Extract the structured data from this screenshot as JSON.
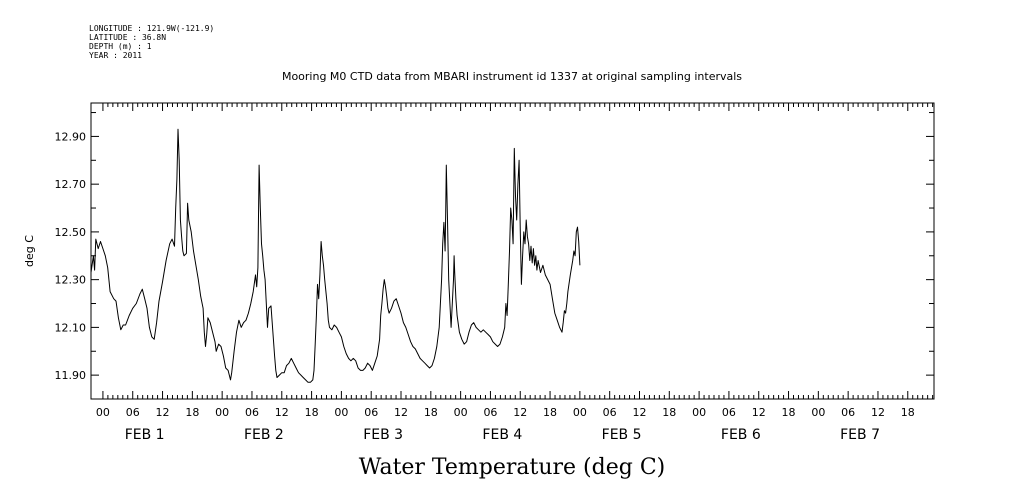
{
  "meta": {
    "longitude": "LONGITUDE : 121.9W(-121.9)",
    "latitude": "LATITUDE : 36.8N",
    "depth": "DEPTH (m) : 1",
    "year": "YEAR : 2011"
  },
  "chart_data": {
    "type": "line",
    "title": "Mooring M0 CTD data from MBARI instrument id 1337 at original sampling intervals",
    "xlabel": "Water Temperature (deg C)",
    "ylabel": "deg C",
    "xlim": [
      -0.1,
      6.97
    ],
    "ylim": [
      11.8,
      13.04
    ],
    "grid": false,
    "yticks": [
      "11.90",
      "12.10",
      "12.30",
      "12.50",
      "12.70",
      "12.90"
    ],
    "hour_labels": [
      "00",
      "06",
      "12",
      "18"
    ],
    "days": [
      {
        "label": "FEB  1"
      },
      {
        "label": "FEB  2"
      },
      {
        "label": "FEB  3"
      },
      {
        "label": "FEB  4"
      },
      {
        "label": "FEB  5"
      },
      {
        "label": "FEB  6"
      },
      {
        "label": "FEB  7"
      }
    ],
    "series": [
      {
        "color": "#000000",
        "points": [
          [
            -0.1,
            12.33
          ],
          [
            -0.08,
            12.4
          ],
          [
            -0.07,
            12.34
          ],
          [
            -0.06,
            12.47
          ],
          [
            -0.04,
            12.43
          ],
          [
            -0.02,
            12.46
          ],
          [
            0.0,
            12.43
          ],
          [
            0.02,
            12.4
          ],
          [
            0.04,
            12.35
          ],
          [
            0.06,
            12.25
          ],
          [
            0.09,
            12.22
          ],
          [
            0.11,
            12.21
          ],
          [
            0.13,
            12.14
          ],
          [
            0.15,
            12.09
          ],
          [
            0.17,
            12.11
          ],
          [
            0.19,
            12.11
          ],
          [
            0.22,
            12.15
          ],
          [
            0.25,
            12.18
          ],
          [
            0.28,
            12.2
          ],
          [
            0.31,
            12.24
          ],
          [
            0.33,
            12.26
          ],
          [
            0.35,
            12.22
          ],
          [
            0.37,
            12.18
          ],
          [
            0.39,
            12.1
          ],
          [
            0.41,
            12.06
          ],
          [
            0.43,
            12.05
          ],
          [
            0.45,
            12.12
          ],
          [
            0.47,
            12.21
          ],
          [
            0.5,
            12.29
          ],
          [
            0.53,
            12.38
          ],
          [
            0.56,
            12.45
          ],
          [
            0.58,
            12.47
          ],
          [
            0.6,
            12.44
          ],
          [
            0.61,
            12.6
          ],
          [
            0.62,
            12.72
          ],
          [
            0.63,
            12.93
          ],
          [
            0.64,
            12.8
          ],
          [
            0.65,
            12.55
          ],
          [
            0.66,
            12.48
          ],
          [
            0.67,
            12.42
          ],
          [
            0.68,
            12.4
          ],
          [
            0.7,
            12.41
          ],
          [
            0.71,
            12.62
          ],
          [
            0.72,
            12.55
          ],
          [
            0.74,
            12.5
          ],
          [
            0.76,
            12.42
          ],
          [
            0.78,
            12.36
          ],
          [
            0.8,
            12.3
          ],
          [
            0.82,
            12.23
          ],
          [
            0.84,
            12.18
          ],
          [
            0.85,
            12.08
          ],
          [
            0.86,
            12.02
          ],
          [
            0.87,
            12.07
          ],
          [
            0.88,
            12.14
          ],
          [
            0.9,
            12.12
          ],
          [
            0.92,
            12.08
          ],
          [
            0.94,
            12.04
          ],
          [
            0.95,
            12.0
          ],
          [
            0.97,
            12.03
          ],
          [
            0.99,
            12.02
          ],
          [
            1.01,
            11.98
          ],
          [
            1.03,
            11.93
          ],
          [
            1.05,
            11.92
          ],
          [
            1.07,
            11.88
          ],
          [
            1.08,
            11.91
          ],
          [
            1.1,
            12.0
          ],
          [
            1.12,
            12.08
          ],
          [
            1.14,
            12.13
          ],
          [
            1.16,
            12.1
          ],
          [
            1.18,
            12.12
          ],
          [
            1.2,
            12.13
          ],
          [
            1.22,
            12.16
          ],
          [
            1.24,
            12.2
          ],
          [
            1.26,
            12.25
          ],
          [
            1.28,
            12.32
          ],
          [
            1.29,
            12.27
          ],
          [
            1.3,
            12.35
          ],
          [
            1.31,
            12.78
          ],
          [
            1.32,
            12.6
          ],
          [
            1.33,
            12.45
          ],
          [
            1.34,
            12.4
          ],
          [
            1.35,
            12.34
          ],
          [
            1.36,
            12.3
          ],
          [
            1.37,
            12.2
          ],
          [
            1.38,
            12.1
          ],
          [
            1.39,
            12.18
          ],
          [
            1.41,
            12.19
          ],
          [
            1.42,
            12.12
          ],
          [
            1.43,
            12.05
          ],
          [
            1.44,
            11.98
          ],
          [
            1.45,
            11.92
          ],
          [
            1.46,
            11.89
          ],
          [
            1.48,
            11.9
          ],
          [
            1.5,
            11.91
          ],
          [
            1.52,
            11.91
          ],
          [
            1.54,
            11.94
          ],
          [
            1.56,
            11.95
          ],
          [
            1.58,
            11.97
          ],
          [
            1.6,
            11.95
          ],
          [
            1.62,
            11.93
          ],
          [
            1.64,
            11.91
          ],
          [
            1.66,
            11.9
          ],
          [
            1.68,
            11.89
          ],
          [
            1.7,
            11.88
          ],
          [
            1.72,
            11.87
          ],
          [
            1.74,
            11.87
          ],
          [
            1.76,
            11.88
          ],
          [
            1.77,
            11.92
          ],
          [
            1.78,
            12.03
          ],
          [
            1.79,
            12.15
          ],
          [
            1.8,
            12.28
          ],
          [
            1.81,
            12.22
          ],
          [
            1.82,
            12.32
          ],
          [
            1.83,
            12.46
          ],
          [
            1.84,
            12.4
          ],
          [
            1.85,
            12.36
          ],
          [
            1.86,
            12.3
          ],
          [
            1.87,
            12.25
          ],
          [
            1.88,
            12.2
          ],
          [
            1.89,
            12.13
          ],
          [
            1.9,
            12.1
          ],
          [
            1.92,
            12.09
          ],
          [
            1.94,
            12.11
          ],
          [
            1.96,
            12.1
          ],
          [
            1.98,
            12.08
          ],
          [
            2.0,
            12.06
          ],
          [
            2.02,
            12.02
          ],
          [
            2.04,
            11.99
          ],
          [
            2.06,
            11.97
          ],
          [
            2.08,
            11.96
          ],
          [
            2.1,
            11.97
          ],
          [
            2.12,
            11.96
          ],
          [
            2.14,
            11.93
          ],
          [
            2.16,
            11.92
          ],
          [
            2.18,
            11.92
          ],
          [
            2.2,
            11.93
          ],
          [
            2.22,
            11.95
          ],
          [
            2.24,
            11.94
          ],
          [
            2.26,
            11.92
          ],
          [
            2.28,
            11.95
          ],
          [
            2.3,
            11.98
          ],
          [
            2.32,
            12.05
          ],
          [
            2.33,
            12.15
          ],
          [
            2.34,
            12.2
          ],
          [
            2.35,
            12.26
          ],
          [
            2.36,
            12.3
          ],
          [
            2.37,
            12.27
          ],
          [
            2.38,
            12.23
          ],
          [
            2.39,
            12.18
          ],
          [
            2.4,
            12.16
          ],
          [
            2.42,
            12.18
          ],
          [
            2.44,
            12.21
          ],
          [
            2.46,
            12.22
          ],
          [
            2.48,
            12.19
          ],
          [
            2.5,
            12.16
          ],
          [
            2.52,
            12.12
          ],
          [
            2.54,
            12.1
          ],
          [
            2.56,
            12.07
          ],
          [
            2.58,
            12.04
          ],
          [
            2.6,
            12.02
          ],
          [
            2.62,
            12.01
          ],
          [
            2.64,
            11.99
          ],
          [
            2.66,
            11.97
          ],
          [
            2.68,
            11.96
          ],
          [
            2.7,
            11.95
          ],
          [
            2.72,
            11.94
          ],
          [
            2.74,
            11.93
          ],
          [
            2.76,
            11.94
          ],
          [
            2.78,
            11.97
          ],
          [
            2.8,
            12.02
          ],
          [
            2.82,
            12.1
          ],
          [
            2.83,
            12.2
          ],
          [
            2.84,
            12.3
          ],
          [
            2.85,
            12.45
          ],
          [
            2.86,
            12.54
          ],
          [
            2.87,
            12.42
          ],
          [
            2.875,
            12.58
          ],
          [
            2.88,
            12.78
          ],
          [
            2.89,
            12.55
          ],
          [
            2.9,
            12.3
          ],
          [
            2.91,
            12.2
          ],
          [
            2.92,
            12.1
          ],
          [
            2.93,
            12.2
          ],
          [
            2.94,
            12.3
          ],
          [
            2.945,
            12.4
          ],
          [
            2.95,
            12.33
          ],
          [
            2.96,
            12.22
          ],
          [
            2.97,
            12.15
          ],
          [
            2.99,
            12.08
          ],
          [
            3.01,
            12.05
          ],
          [
            3.03,
            12.03
          ],
          [
            3.05,
            12.04
          ],
          [
            3.07,
            12.08
          ],
          [
            3.09,
            12.11
          ],
          [
            3.11,
            12.12
          ],
          [
            3.13,
            12.1
          ],
          [
            3.15,
            12.09
          ],
          [
            3.17,
            12.08
          ],
          [
            3.19,
            12.09
          ],
          [
            3.21,
            12.08
          ],
          [
            3.23,
            12.07
          ],
          [
            3.25,
            12.06
          ],
          [
            3.27,
            12.04
          ],
          [
            3.29,
            12.03
          ],
          [
            3.31,
            12.02
          ],
          [
            3.33,
            12.03
          ],
          [
            3.35,
            12.06
          ],
          [
            3.37,
            12.1
          ],
          [
            3.38,
            12.2
          ],
          [
            3.39,
            12.15
          ],
          [
            3.4,
            12.28
          ],
          [
            3.41,
            12.42
          ],
          [
            3.42,
            12.6
          ],
          [
            3.43,
            12.55
          ],
          [
            3.44,
            12.45
          ],
          [
            3.45,
            12.85
          ],
          [
            3.46,
            12.65
          ],
          [
            3.47,
            12.55
          ],
          [
            3.48,
            12.7
          ],
          [
            3.49,
            12.8
          ],
          [
            3.5,
            12.5
          ],
          [
            3.51,
            12.28
          ],
          [
            3.52,
            12.4
          ],
          [
            3.53,
            12.5
          ],
          [
            3.54,
            12.45
          ],
          [
            3.55,
            12.55
          ],
          [
            3.56,
            12.48
          ],
          [
            3.57,
            12.45
          ],
          [
            3.58,
            12.38
          ],
          [
            3.59,
            12.44
          ],
          [
            3.6,
            12.37
          ],
          [
            3.61,
            12.43
          ],
          [
            3.62,
            12.36
          ],
          [
            3.63,
            12.4
          ],
          [
            3.64,
            12.34
          ],
          [
            3.65,
            12.38
          ],
          [
            3.67,
            12.33
          ],
          [
            3.69,
            12.36
          ],
          [
            3.71,
            12.32
          ],
          [
            3.73,
            12.3
          ],
          [
            3.75,
            12.28
          ],
          [
            3.77,
            12.22
          ],
          [
            3.79,
            12.16
          ],
          [
            3.81,
            12.13
          ],
          [
            3.83,
            12.1
          ],
          [
            3.85,
            12.08
          ],
          [
            3.86,
            12.12
          ],
          [
            3.87,
            12.17
          ],
          [
            3.88,
            12.16
          ],
          [
            3.89,
            12.2
          ],
          [
            3.9,
            12.25
          ],
          [
            3.92,
            12.32
          ],
          [
            3.94,
            12.38
          ],
          [
            3.95,
            12.42
          ],
          [
            3.96,
            12.4
          ],
          [
            3.97,
            12.5
          ],
          [
            3.98,
            12.52
          ],
          [
            3.99,
            12.46
          ],
          [
            4.0,
            12.36
          ]
        ]
      }
    ]
  }
}
